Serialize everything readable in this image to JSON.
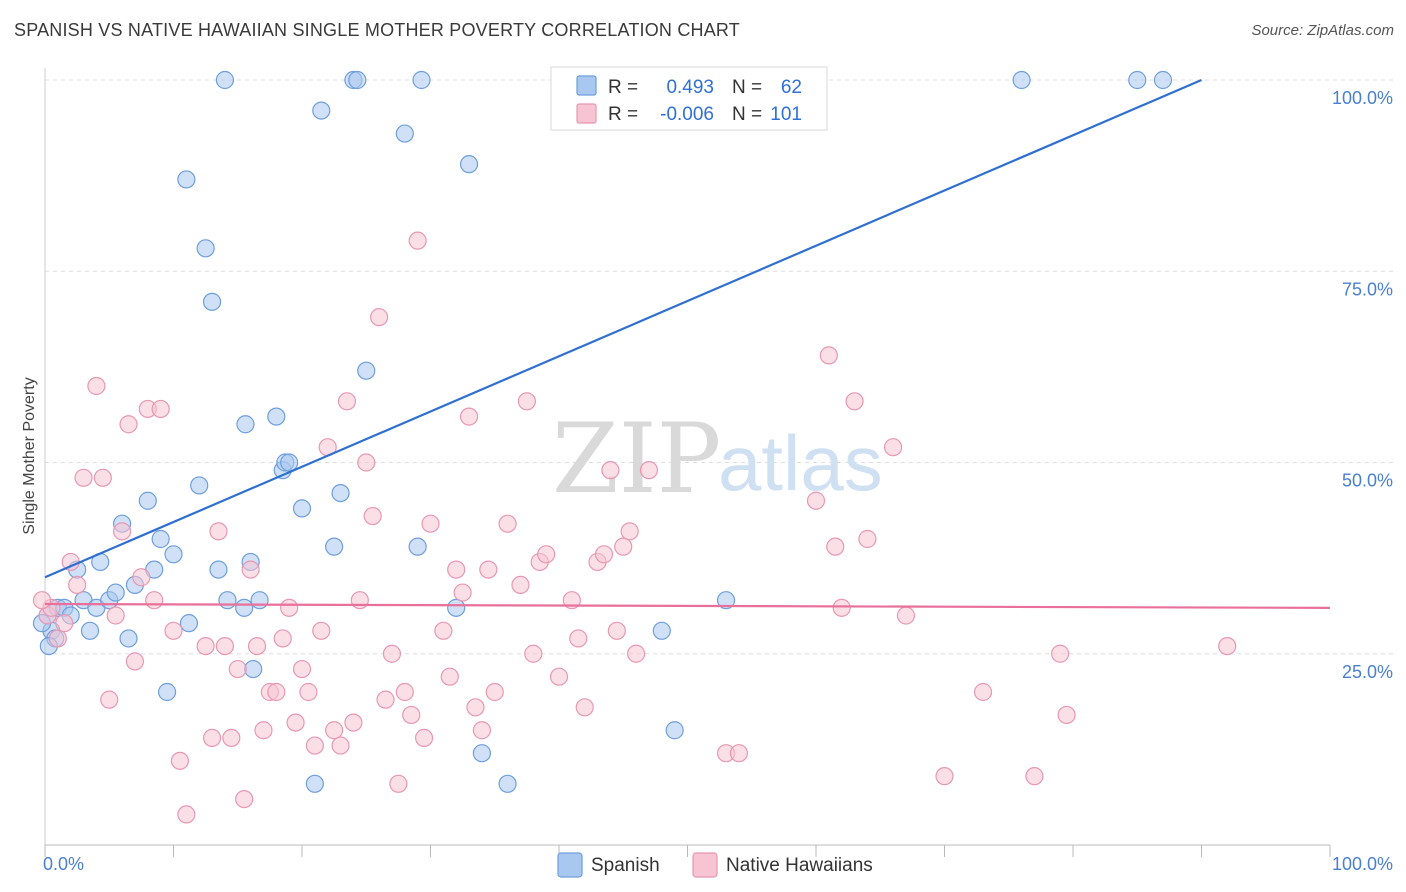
{
  "header": {
    "title": "SPANISH VS NATIVE HAWAIIAN SINGLE MOTHER POVERTY CORRELATION CHART",
    "source": "Source: ZipAtlas.com"
  },
  "watermark": {
    "zip": "ZIP",
    "atlas": "atlas"
  },
  "legend": {
    "r_label": "R =",
    "n_label": "N =",
    "rows": [
      {
        "r": "0.493",
        "n": "62"
      },
      {
        "r": "-0.006",
        "n": "101"
      }
    ]
  },
  "colors": {
    "spanish_fill": "#a9c8f0",
    "spanish_stroke": "#6f9fdc",
    "spanish_line": "#2f6fd0",
    "hawaiian_fill": "#f7c4d3",
    "hawaiian_stroke": "#e898b2",
    "hawaiian_line": "#e8709a"
  },
  "chart_data": {
    "type": "scatter",
    "title": "SPANISH VS NATIVE HAWAIIAN SINGLE MOTHER POVERTY CORRELATION CHART",
    "ylabel": "Single Mother Poverty",
    "xlabel": "",
    "xlim": [
      0,
      100
    ],
    "ylim": [
      0,
      100
    ],
    "x_tick_labels": [
      "0.0%",
      "100.0%"
    ],
    "y_ticks": [
      {
        "value": 25,
        "label": "25.0%"
      },
      {
        "value": 50,
        "label": "50.0%"
      },
      {
        "value": 75,
        "label": "75.0%"
      },
      {
        "value": 100,
        "label": "100.0%"
      }
    ],
    "grid": true,
    "legend_position": "top-center",
    "series": [
      {
        "name": "Spanish",
        "r": 0.493,
        "n": 62,
        "trend": {
          "x": [
            0,
            90
          ],
          "y": [
            35,
            100
          ]
        },
        "points": [
          [
            0.2,
            30
          ],
          [
            0.5,
            28
          ],
          [
            0.8,
            27
          ],
          [
            1,
            31
          ],
          [
            1.5,
            31
          ],
          [
            2,
            30
          ],
          [
            2.5,
            36
          ],
          [
            3,
            32
          ],
          [
            3.5,
            28
          ],
          [
            4,
            31
          ],
          [
            4.3,
            37
          ],
          [
            5,
            32
          ],
          [
            5.5,
            33
          ],
          [
            6,
            42
          ],
          [
            6.5,
            27
          ],
          [
            7,
            34
          ],
          [
            8,
            45
          ],
          [
            8.5,
            36
          ],
          [
            9,
            40
          ],
          [
            9.5,
            20
          ],
          [
            10,
            38
          ],
          [
            11,
            87
          ],
          [
            11.2,
            29
          ],
          [
            12,
            47
          ],
          [
            12.5,
            78
          ],
          [
            13,
            71
          ],
          [
            13.5,
            36
          ],
          [
            14,
            100
          ],
          [
            14.2,
            32
          ],
          [
            15.5,
            31
          ],
          [
            15.6,
            55
          ],
          [
            16,
            37
          ],
          [
            16.2,
            23
          ],
          [
            16.7,
            32
          ],
          [
            18,
            56
          ],
          [
            18.5,
            49
          ],
          [
            18.7,
            50
          ],
          [
            19,
            50
          ],
          [
            20,
            44
          ],
          [
            21,
            8
          ],
          [
            21.5,
            96
          ],
          [
            22.5,
            39
          ],
          [
            23,
            46
          ],
          [
            24,
            100
          ],
          [
            24.3,
            100
          ],
          [
            25,
            62
          ],
          [
            28,
            93
          ],
          [
            29,
            39
          ],
          [
            29.3,
            100
          ],
          [
            32,
            31
          ],
          [
            33,
            89
          ],
          [
            34,
            12
          ],
          [
            36,
            8
          ],
          [
            48,
            28
          ],
          [
            49,
            15
          ],
          [
            53,
            32
          ],
          [
            55,
            100
          ],
          [
            76,
            100
          ],
          [
            85,
            100
          ],
          [
            87,
            100
          ],
          [
            -0.5,
            29
          ],
          [
            0.3,
            26
          ]
        ]
      },
      {
        "name": "Native Hawaiians",
        "r": -0.006,
        "n": 101,
        "trend": {
          "x": [
            0,
            100
          ],
          "y": [
            31.5,
            31
          ]
        },
        "points": [
          [
            0.2,
            30
          ],
          [
            0.5,
            31
          ],
          [
            1,
            27
          ],
          [
            1.5,
            29
          ],
          [
            2,
            37
          ],
          [
            2.5,
            34
          ],
          [
            3,
            48
          ],
          [
            4,
            60
          ],
          [
            4.5,
            48
          ],
          [
            5,
            19
          ],
          [
            5.5,
            30
          ],
          [
            6,
            41
          ],
          [
            6.5,
            55
          ],
          [
            7,
            24
          ],
          [
            7.5,
            35
          ],
          [
            8,
            57
          ],
          [
            8.5,
            32
          ],
          [
            9,
            57
          ],
          [
            10,
            28
          ],
          [
            10.5,
            11
          ],
          [
            11,
            4
          ],
          [
            12.5,
            26
          ],
          [
            13,
            14
          ],
          [
            13.5,
            41
          ],
          [
            14,
            26
          ],
          [
            14.5,
            14
          ],
          [
            15,
            23
          ],
          [
            15.5,
            6
          ],
          [
            16,
            36
          ],
          [
            16.5,
            26
          ],
          [
            17,
            15
          ],
          [
            17.5,
            20
          ],
          [
            18,
            20
          ],
          [
            18.5,
            27
          ],
          [
            19,
            31
          ],
          [
            19.5,
            16
          ],
          [
            20,
            23
          ],
          [
            20.5,
            20
          ],
          [
            21,
            13
          ],
          [
            21.5,
            28
          ],
          [
            22,
            52
          ],
          [
            22.5,
            15
          ],
          [
            23,
            13
          ],
          [
            23.5,
            58
          ],
          [
            24,
            16
          ],
          [
            24.5,
            32
          ],
          [
            25,
            50
          ],
          [
            25.5,
            43
          ],
          [
            26,
            69
          ],
          [
            26.5,
            19
          ],
          [
            27,
            25
          ],
          [
            27.5,
            8
          ],
          [
            28,
            20
          ],
          [
            28.5,
            17
          ],
          [
            29,
            79
          ],
          [
            29.5,
            14
          ],
          [
            30,
            42
          ],
          [
            31,
            28
          ],
          [
            31.5,
            22
          ],
          [
            32,
            36
          ],
          [
            32.5,
            33
          ],
          [
            33,
            56
          ],
          [
            33.5,
            18
          ],
          [
            34,
            15
          ],
          [
            34.5,
            36
          ],
          [
            35,
            20
          ],
          [
            36,
            42
          ],
          [
            37,
            34
          ],
          [
            37.5,
            58
          ],
          [
            38,
            25
          ],
          [
            38.5,
            37
          ],
          [
            39,
            38
          ],
          [
            40,
            22
          ],
          [
            41,
            32
          ],
          [
            41.5,
            27
          ],
          [
            42,
            18
          ],
          [
            43,
            37
          ],
          [
            43.5,
            38
          ],
          [
            44,
            49
          ],
          [
            44.5,
            28
          ],
          [
            45,
            39
          ],
          [
            45.5,
            41
          ],
          [
            46,
            25
          ],
          [
            47,
            49
          ],
          [
            53,
            12
          ],
          [
            54,
            12
          ],
          [
            60,
            45
          ],
          [
            61,
            64
          ],
          [
            61.5,
            39
          ],
          [
            62,
            31
          ],
          [
            63,
            58
          ],
          [
            64,
            40
          ],
          [
            66,
            52
          ],
          [
            67,
            30
          ],
          [
            70,
            9
          ],
          [
            73,
            20
          ],
          [
            77,
            9
          ],
          [
            79,
            25
          ],
          [
            79.5,
            17
          ],
          [
            92,
            26
          ],
          [
            -0.5,
            32
          ]
        ]
      }
    ]
  },
  "bottom_legend": [
    {
      "label": "Spanish"
    },
    {
      "label": "Native Hawaiians"
    }
  ]
}
